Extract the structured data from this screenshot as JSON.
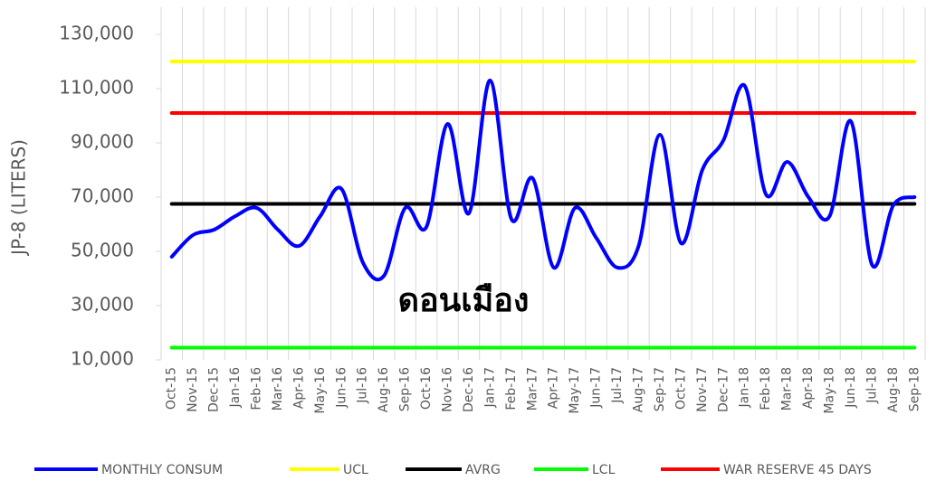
{
  "chart_data": {
    "type": "line",
    "y_label": "JP-8 (LITERS)",
    "annotation": "ดอนเมือง",
    "categories": [
      "Oct-15",
      "Nov-15",
      "Dec-15",
      "Jan-16",
      "Feb-16",
      "Mar-16",
      "Apr-16",
      "May-16",
      "Jun-16",
      "Jul-16",
      "Aug-16",
      "Sep-16",
      "Oct-16",
      "Nov-16",
      "Dec-16",
      "Jan-17",
      "Feb-17",
      "Mar-17",
      "Apr-17",
      "May-17",
      "Jun-17",
      "Jul-17",
      "Aug-17",
      "Sep-17",
      "Oct-17",
      "Nov-17",
      "Dec-17",
      "Jan-18",
      "Feb-18",
      "Mar-18",
      "Apr-18",
      "May-18",
      "Jun-18",
      "Jul-18",
      "Aug-18",
      "Sep-18"
    ],
    "series": [
      {
        "name": "MONTHLY CONSUM",
        "color": "#0000ff",
        "smooth": true,
        "values": [
          48000,
          56000,
          58000,
          63000,
          66000,
          58000,
          52000,
          63000,
          73000,
          46000,
          41000,
          66000,
          59000,
          97000,
          64000,
          113000,
          62000,
          77000,
          44000,
          66000,
          55000,
          44000,
          52000,
          93000,
          53000,
          80000,
          91000,
          111000,
          71000,
          83000,
          70000,
          63000,
          98000,
          45000,
          67000,
          70000
        ]
      },
      {
        "name": "UCL",
        "color": "#ffff00",
        "values": [
          120000,
          120000,
          120000,
          120000,
          120000,
          120000,
          120000,
          120000,
          120000,
          120000,
          120000,
          120000,
          120000,
          120000,
          120000,
          120000,
          120000,
          120000,
          120000,
          120000,
          120000,
          120000,
          120000,
          120000,
          120000,
          120000,
          120000,
          120000,
          120000,
          120000,
          120000,
          120000,
          120000,
          120000,
          120000,
          120000
        ]
      },
      {
        "name": "AVRG",
        "color": "#000000",
        "values": [
          67500,
          67500,
          67500,
          67500,
          67500,
          67500,
          67500,
          67500,
          67500,
          67500,
          67500,
          67500,
          67500,
          67500,
          67500,
          67500,
          67500,
          67500,
          67500,
          67500,
          67500,
          67500,
          67500,
          67500,
          67500,
          67500,
          67500,
          67500,
          67500,
          67500,
          67500,
          67500,
          67500,
          67500,
          67500,
          67500
        ]
      },
      {
        "name": "LCL",
        "color": "#00ff00",
        "values": [
          14500,
          14500,
          14500,
          14500,
          14500,
          14500,
          14500,
          14500,
          14500,
          14500,
          14500,
          14500,
          14500,
          14500,
          14500,
          14500,
          14500,
          14500,
          14500,
          14500,
          14500,
          14500,
          14500,
          14500,
          14500,
          14500,
          14500,
          14500,
          14500,
          14500,
          14500,
          14500,
          14500,
          14500,
          14500,
          14500
        ]
      },
      {
        "name": "WAR RESERVE 45 DAYS",
        "color": "#ff0000",
        "values": [
          101000,
          101000,
          101000,
          101000,
          101000,
          101000,
          101000,
          101000,
          101000,
          101000,
          101000,
          101000,
          101000,
          101000,
          101000,
          101000,
          101000,
          101000,
          101000,
          101000,
          101000,
          101000,
          101000,
          101000,
          101000,
          101000,
          101000,
          101000,
          101000,
          101000,
          101000,
          101000,
          101000,
          101000,
          101000,
          101000
        ]
      }
    ],
    "ylim": [
      10000,
      130000
    ],
    "yticks": [
      {
        "value": 10000,
        "label": "10,000"
      },
      {
        "value": 30000,
        "label": "30,000"
      },
      {
        "value": 50000,
        "label": "50,000"
      },
      {
        "value": 70000,
        "label": "70,000"
      },
      {
        "value": 90000,
        "label": "90,000"
      },
      {
        "value": 110000,
        "label": "110,000"
      },
      {
        "value": 130000,
        "label": "130,000"
      }
    ],
    "grid": true,
    "legend": "bottom"
  }
}
